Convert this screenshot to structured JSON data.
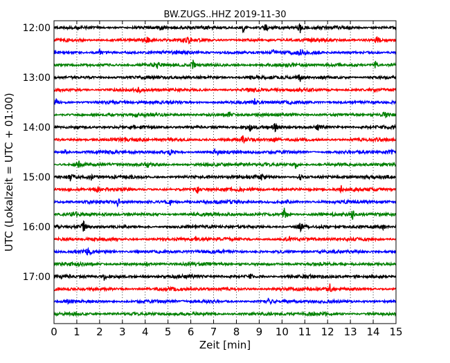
{
  "chart_data": {
    "type": "line",
    "title": "BW.ZUGS..HHZ 2019-11-30",
    "xlabel": "Zeit  [min]",
    "ylabel": "UTC (Lokalzeit = UTC + 01:00)",
    "xlim": [
      0,
      15
    ],
    "x_ticks": [
      "0",
      "1",
      "2",
      "3",
      "4",
      "5",
      "6",
      "7",
      "8",
      "9",
      "10",
      "11",
      "12",
      "13",
      "14",
      "15"
    ],
    "y_ticks": [
      "12:00",
      "13:00",
      "14:00",
      "15:00",
      "16:00",
      "17:00"
    ],
    "grid": "vertical dotted at each minute",
    "trace_interval_min": 15,
    "trace_colors": [
      "#000000",
      "#ff0000",
      "#0000ff",
      "#008000"
    ],
    "traces": [
      {
        "start": "12:00",
        "color": "#000000",
        "events": [
          [
            4.7,
            0.5
          ],
          [
            8.3,
            0.7
          ],
          [
            9.3,
            0.6
          ],
          [
            10.8,
            0.8
          ]
        ]
      },
      {
        "start": "12:15",
        "color": "#ff0000",
        "events": [
          [
            4.1,
            0.5
          ],
          [
            5.9,
            0.4
          ],
          [
            14.2,
            0.7
          ]
        ]
      },
      {
        "start": "12:30",
        "color": "#0000ff",
        "events": [
          [
            2.0,
            0.4
          ],
          [
            9.6,
            0.5
          ],
          [
            10.8,
            0.5
          ]
        ]
      },
      {
        "start": "12:45",
        "color": "#008000",
        "events": [
          [
            4.5,
            0.6
          ],
          [
            6.1,
            0.7
          ],
          [
            14.1,
            0.6
          ]
        ]
      },
      {
        "start": "13:00",
        "color": "#000000",
        "events": [
          [
            8.6,
            0.5
          ],
          [
            10.8,
            0.6
          ]
        ]
      },
      {
        "start": "13:15",
        "color": "#ff0000",
        "events": [
          [
            3.7,
            0.4
          ],
          [
            8.5,
            0.4
          ]
        ]
      },
      {
        "start": "13:30",
        "color": "#0000ff",
        "events": [
          [
            0.1,
            0.6
          ],
          [
            8.8,
            0.5
          ]
        ]
      },
      {
        "start": "13:45",
        "color": "#008000",
        "events": [
          [
            3.6,
            0.4
          ],
          [
            7.7,
            0.5
          ],
          [
            14.5,
            0.7
          ]
        ]
      },
      {
        "start": "14:00",
        "color": "#000000",
        "events": [
          [
            8.6,
            0.5
          ],
          [
            9.7,
            0.6
          ],
          [
            11.6,
            0.6
          ]
        ]
      },
      {
        "start": "14:15",
        "color": "#ff0000",
        "events": [
          [
            3.8,
            0.4
          ],
          [
            8.3,
            0.6
          ],
          [
            9.7,
            0.6
          ]
        ]
      },
      {
        "start": "14:30",
        "color": "#0000ff",
        "events": [
          [
            0.5,
            0.5
          ],
          [
            5.1,
            0.5
          ],
          [
            7.1,
            0.7
          ],
          [
            14.8,
            0.5
          ]
        ]
      },
      {
        "start": "14:45",
        "color": "#008000",
        "events": [
          [
            1.1,
            0.5
          ],
          [
            4.1,
            0.5
          ],
          [
            10.6,
            0.6
          ]
        ]
      },
      {
        "start": "15:00",
        "color": "#000000",
        "events": [
          [
            0.7,
            0.6
          ],
          [
            1.6,
            0.6
          ],
          [
            9.1,
            0.5
          ],
          [
            10.8,
            0.5
          ]
        ]
      },
      {
        "start": "15:15",
        "color": "#ff0000",
        "events": [
          [
            1.9,
            0.4
          ],
          [
            6.3,
            0.5
          ],
          [
            12.6,
            0.6
          ]
        ]
      },
      {
        "start": "15:30",
        "color": "#0000ff",
        "events": [
          [
            2.8,
            0.6
          ],
          [
            5.1,
            0.7
          ],
          [
            10.2,
            0.4
          ]
        ]
      },
      {
        "start": "15:45",
        "color": "#008000",
        "events": [
          [
            0.9,
            0.5
          ],
          [
            10.1,
            0.9
          ],
          [
            13.1,
            0.7
          ]
        ]
      },
      {
        "start": "16:00",
        "color": "#000000",
        "events": [
          [
            1.3,
            0.9
          ],
          [
            10.8,
            0.7
          ],
          [
            14.4,
            0.6
          ]
        ]
      },
      {
        "start": "16:15",
        "color": "#ff0000",
        "events": [
          [
            6.2,
            0.4
          ],
          [
            10.3,
            0.4
          ]
        ]
      },
      {
        "start": "16:30",
        "color": "#0000ff",
        "events": [
          [
            1.5,
            0.7
          ]
        ]
      },
      {
        "start": "16:45",
        "color": "#008000",
        "events": [
          [
            4.1,
            0.3
          ]
        ]
      },
      {
        "start": "17:00",
        "color": "#000000",
        "events": [
          [
            2.2,
            0.5
          ],
          [
            8.6,
            0.4
          ]
        ]
      },
      {
        "start": "17:15",
        "color": "#ff0000",
        "events": [
          [
            12.1,
            0.8
          ]
        ]
      },
      {
        "start": "17:30",
        "color": "#0000ff",
        "events": [
          [
            0.6,
            0.3
          ],
          [
            9.4,
            0.5
          ]
        ]
      },
      {
        "start": "17:45",
        "color": "#008000",
        "events": []
      }
    ]
  }
}
